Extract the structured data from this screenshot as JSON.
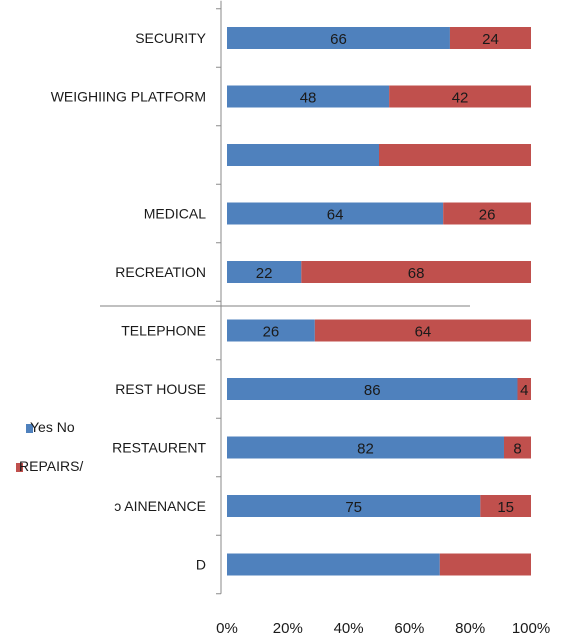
{
  "chart_data": {
    "type": "bar",
    "orientation": "horizontal",
    "stacked": "percent",
    "categories": [
      "SECURITY",
      "WEIGHIING PLATFORM",
      "",
      "MEDICAL",
      "RECREATION",
      "TELEPHONE",
      "REST HOUSE",
      "RESTAURENT",
      "ↄ AINENANCE",
      "D"
    ],
    "series": [
      {
        "name": "Yes",
        "color": "#4f81bd",
        "values": [
          66,
          48,
          50,
          64,
          22,
          26,
          86,
          82,
          75,
          70
        ]
      },
      {
        "name": "No",
        "color": "#c0504d",
        "values": [
          24,
          42,
          50,
          26,
          68,
          64,
          4,
          8,
          15,
          30
        ]
      }
    ],
    "data_labels": {
      "Yes": [
        "66",
        "48",
        "",
        "64",
        "22",
        "26",
        "86",
        "82",
        "75",
        ""
      ],
      "No": [
        "24",
        "42",
        "",
        "26",
        "68",
        "64",
        "4",
        "8",
        "15",
        ""
      ]
    },
    "x_ticks": [
      "0%",
      "20%",
      "40%",
      "60%",
      "80%",
      "100%"
    ],
    "xlim": [
      0,
      100
    ],
    "grid": false,
    "legend": {
      "position": "left",
      "yes_text": "Yes No",
      "repairs_text": "REPAIRS/"
    }
  }
}
